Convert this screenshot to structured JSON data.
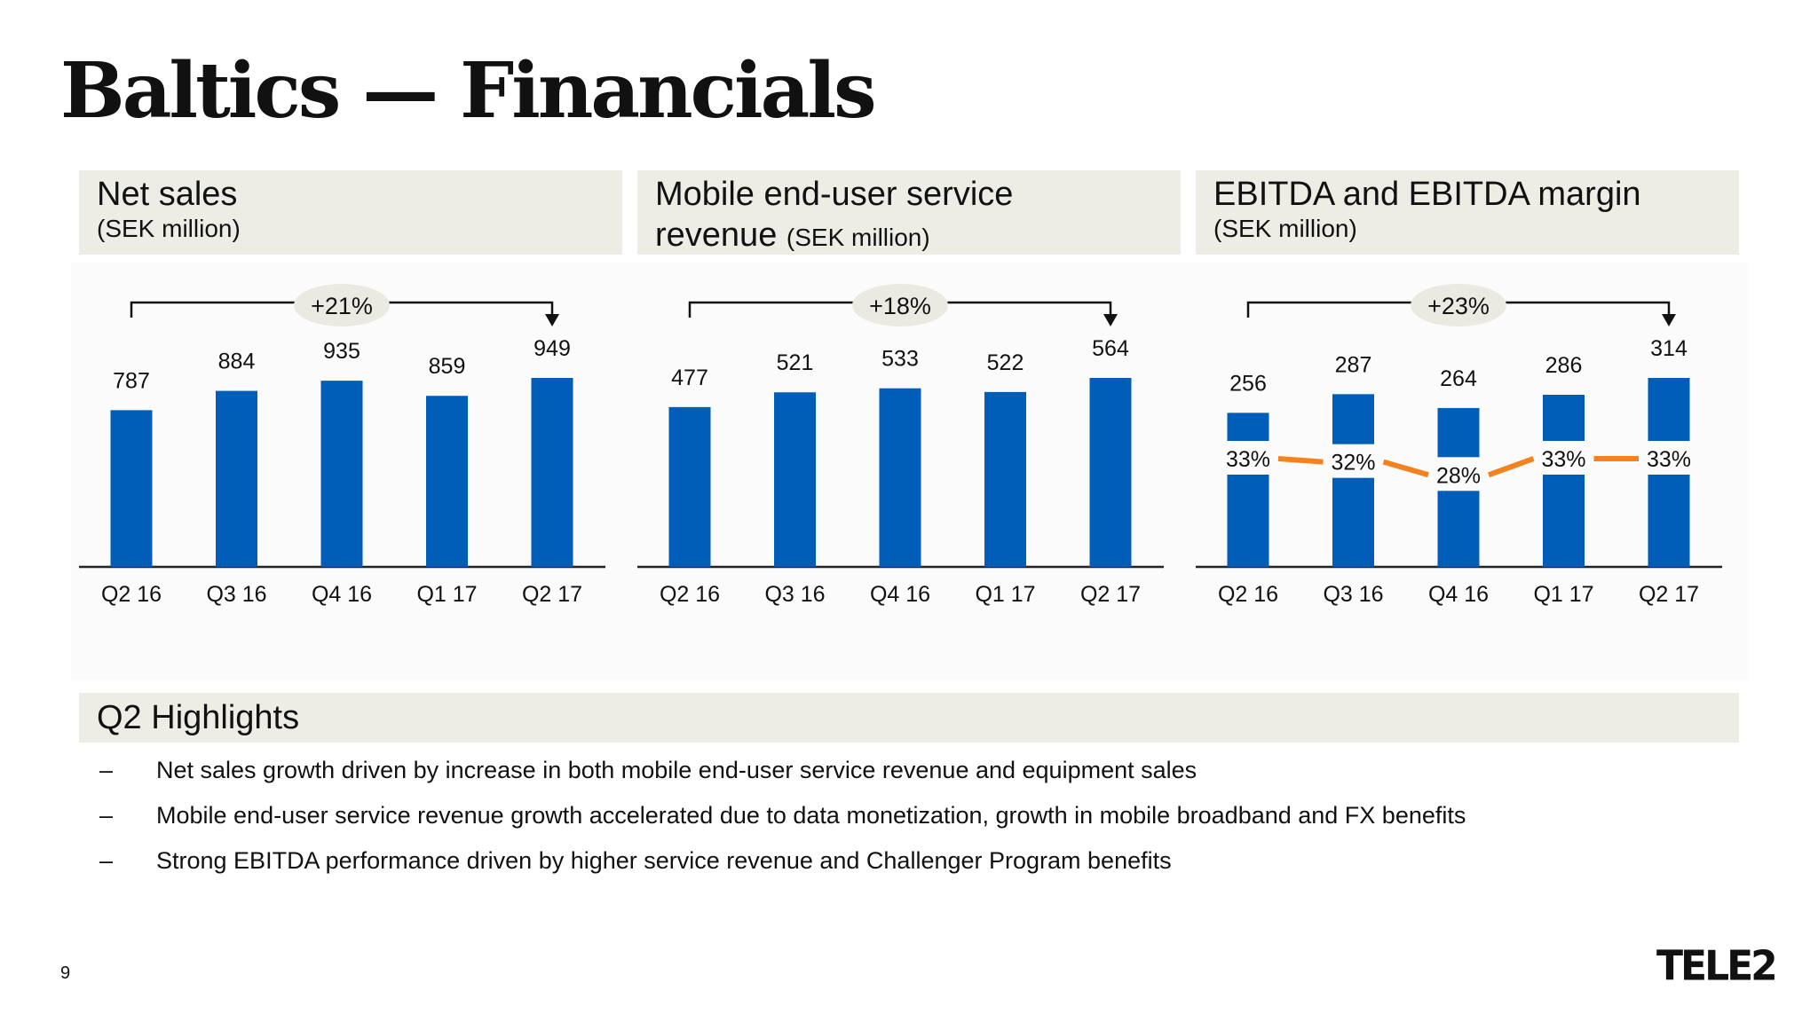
{
  "title": "Baltics — Financials",
  "page_number": "9",
  "logo_text": "TELE2",
  "colors": {
    "bar": "#005EB8",
    "margin_line": "#F5821F",
    "header_bg": "#EEEDE5"
  },
  "panels": [
    {
      "heading": "Net sales",
      "subheading": "(SEK million)"
    },
    {
      "heading": "Mobile end-user service",
      "heading2": "revenue",
      "subheading": "(SEK million)"
    },
    {
      "heading": "EBITDA and EBITDA margin",
      "subheading": "(SEK million)"
    }
  ],
  "chart_data": [
    {
      "type": "bar",
      "title": "Net sales",
      "categories": [
        "Q2 16",
        "Q3 16",
        "Q4 16",
        "Q1 17",
        "Q2 17"
      ],
      "values": [
        787,
        884,
        935,
        859,
        949
      ],
      "growth_label": "+21%"
    },
    {
      "type": "bar",
      "title": "Mobile end-user service revenue",
      "categories": [
        "Q2 16",
        "Q3 16",
        "Q4 16",
        "Q1 17",
        "Q2 17"
      ],
      "values": [
        477,
        521,
        533,
        522,
        564
      ],
      "growth_label": "+18%"
    },
    {
      "type": "bar+line",
      "title": "EBITDA and EBITDA margin",
      "categories": [
        "Q2 16",
        "Q3 16",
        "Q4 16",
        "Q1 17",
        "Q2 17"
      ],
      "values": [
        256,
        287,
        264,
        286,
        314
      ],
      "margin_percent": [
        33,
        32,
        28,
        33,
        33
      ],
      "margin_labels": [
        "33%",
        "32%",
        "28%",
        "33%",
        "33%"
      ],
      "growth_label": "+23%"
    }
  ],
  "highlights": {
    "title": "Q2 Highlights",
    "bullet": "–",
    "items": [
      "Net sales growth driven by increase in both mobile end-user service revenue and equipment sales",
      "Mobile end-user service revenue growth accelerated due to data monetization, growth in mobile broadband and FX benefits",
      "Strong EBITDA performance driven by higher service revenue and Challenger Program benefits"
    ]
  }
}
